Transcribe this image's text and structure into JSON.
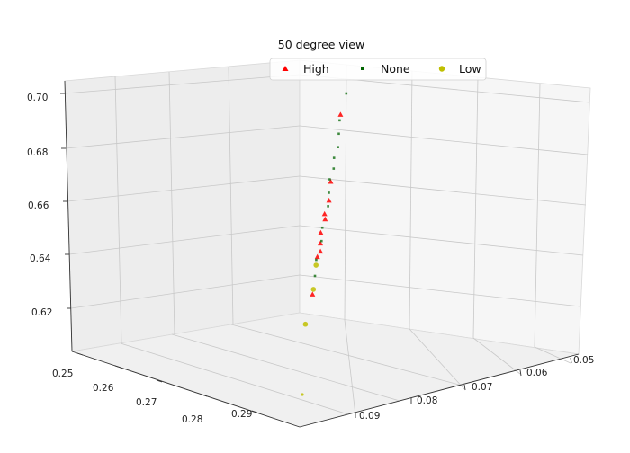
{
  "chart_data": {
    "type": "scatter",
    "title": "50 degree view",
    "projection": "3d",
    "legend_placement": "top-center",
    "grid": true,
    "axes": {
      "x": {
        "ticks": [
          "0.05",
          "0.06",
          "0.07",
          "0.08",
          "0.09"
        ]
      },
      "y": {
        "ticks": [
          "0.25",
          "0.26",
          "0.27",
          "0.28",
          "0.29"
        ]
      },
      "z": {
        "ticks": [
          "0.62",
          "0.64",
          "0.66",
          "0.68",
          "0.70"
        ]
      }
    },
    "series": [
      {
        "name": "High",
        "marker": "triangle",
        "color": "#ff0000",
        "points": [
          {
            "z": 0.692
          },
          {
            "z": 0.667
          },
          {
            "z": 0.66
          },
          {
            "z": 0.655
          },
          {
            "z": 0.653
          },
          {
            "z": 0.648
          },
          {
            "z": 0.644
          },
          {
            "z": 0.641
          },
          {
            "z": 0.639
          },
          {
            "z": 0.625
          }
        ]
      },
      {
        "name": "None",
        "marker": "square",
        "color": "#006400",
        "points": [
          {
            "z": 0.7
          },
          {
            "z": 0.69
          },
          {
            "z": 0.685
          },
          {
            "z": 0.68
          },
          {
            "z": 0.676
          },
          {
            "z": 0.672
          },
          {
            "z": 0.668
          },
          {
            "z": 0.663
          },
          {
            "z": 0.658
          },
          {
            "z": 0.65
          },
          {
            "z": 0.645
          },
          {
            "z": 0.638
          },
          {
            "z": 0.632
          }
        ]
      },
      {
        "name": "Low",
        "marker": "circle",
        "color": "#bfbf00",
        "points": [
          {
            "z": 0.636
          },
          {
            "z": 0.627
          },
          {
            "z": 0.614
          },
          {
            "z": 0.6
          }
        ]
      }
    ]
  }
}
